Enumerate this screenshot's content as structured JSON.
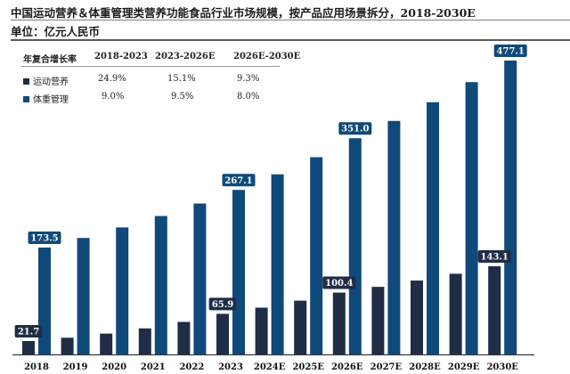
{
  "title": "中国运动营养＆体重管理类营养功能食品行业市场规模，按产品应用场景拆分，2018-2030E",
  "unit": "单位：亿元人民币",
  "cagr_table": {
    "header": [
      "年复合增长率",
      "2018-2023",
      "2023-2026E",
      "2026E-2030E"
    ],
    "rows": [
      {
        "label": "运动营养",
        "values": [
          "24.9%",
          "15.1%",
          "9.3%"
        ]
      },
      {
        "label": "体重管理",
        "values": [
          "9.0%",
          "9.5%",
          "8.0%"
        ]
      }
    ]
  },
  "colors": {
    "sports": "#1f2d47",
    "weight": "#0f4a7a",
    "label_text": "#ffffff"
  },
  "chart_data": {
    "type": "bar",
    "categories": [
      "2018",
      "2019",
      "2020",
      "2021",
      "2022",
      "2023",
      "2024E",
      "2025E",
      "2026E",
      "2027E",
      "2028E",
      "2029E",
      "2030E"
    ],
    "series": [
      {
        "name": "运动营养",
        "values": [
          21.7,
          27.1,
          33.8,
          42.3,
          52.8,
          65.9,
          75.9,
          87.3,
          100.4,
          109.7,
          119.9,
          131.0,
          143.1
        ]
      },
      {
        "name": "体重管理",
        "values": [
          173.5,
          189.1,
          206.2,
          224.7,
          245.0,
          267.1,
          292.4,
          320.2,
          351.0,
          379.1,
          409.4,
          442.1,
          477.1
        ]
      }
    ],
    "data_labels": [
      {
        "series": 0,
        "index": 0,
        "text": "21.7"
      },
      {
        "series": 1,
        "index": 0,
        "text": "173.5"
      },
      {
        "series": 0,
        "index": 5,
        "text": "65.9"
      },
      {
        "series": 1,
        "index": 5,
        "text": "267.1"
      },
      {
        "series": 0,
        "index": 8,
        "text": "100.4"
      },
      {
        "series": 1,
        "index": 8,
        "text": "351.0"
      },
      {
        "series": 0,
        "index": 12,
        "text": "143.1"
      },
      {
        "series": 1,
        "index": 12,
        "text": "477.1"
      }
    ],
    "ylim": [
      0,
      480
    ],
    "grid": false,
    "legend": "top-left"
  }
}
